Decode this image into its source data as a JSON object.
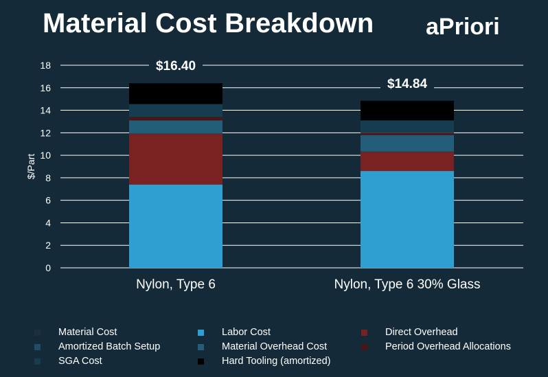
{
  "header": {
    "title": "Material Cost Breakdown",
    "logo": "aPriori"
  },
  "chart_data": {
    "type": "bar",
    "stacked": true,
    "ylabel": "$/Part",
    "ylim": [
      0,
      18
    ],
    "yticks": [
      0,
      2,
      4,
      6,
      8,
      10,
      12,
      14,
      16,
      18
    ],
    "grid": true,
    "legend_position": "bottom",
    "categories": [
      "Nylon, Type 6",
      "Nylon, Type 6 30% Glass"
    ],
    "totals": [
      "$16.40",
      "$14.84"
    ],
    "series": [
      {
        "name": "Material Cost",
        "color": "#1b2f3c",
        "values": [
          0,
          0
        ]
      },
      {
        "name": "Labor Cost",
        "color": "#2f9fd1",
        "values": [
          7.4,
          8.6
        ]
      },
      {
        "name": "Direct Overhead",
        "color": "#7a2121",
        "values": [
          4.5,
          1.7
        ]
      },
      {
        "name": "Amortized Batch Setup",
        "color": "#1e4d66",
        "values": [
          0.05,
          0.05
        ]
      },
      {
        "name": "Material Overhead Cost",
        "color": "#245d7a",
        "values": [
          1.15,
          1.45
        ]
      },
      {
        "name": "Period Overhead Allocations",
        "color": "#4a1616",
        "values": [
          0.3,
          0.2
        ]
      },
      {
        "name": "SGA Cost",
        "color": "#163c50",
        "values": [
          1.15,
          1.1
        ]
      },
      {
        "name": "Hard Tooling (amortized)",
        "color": "#000000",
        "values": [
          1.85,
          1.74
        ]
      }
    ]
  }
}
